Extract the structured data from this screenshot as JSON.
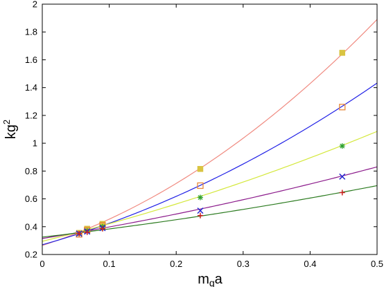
{
  "chart_data": {
    "type": "scatter",
    "xlabel": "m",
    "xlabel_sub": "q",
    "xlabel_tail": "a",
    "ylabel": "kg",
    "ylabel_sup": "2",
    "xlim": [
      0,
      0.5
    ],
    "ylim": [
      0.2,
      2
    ],
    "xticks": [
      "0",
      "0.1",
      "0.2",
      "0.3",
      "0.4",
      "0.5"
    ],
    "xtick_values": [
      0,
      0.1,
      0.2,
      0.3,
      0.4,
      0.5
    ],
    "yticks": [
      "0.2",
      "0.4",
      "0.6",
      "0.8",
      "1",
      "1.2",
      "1.4",
      "1.6",
      "1.8",
      "2"
    ],
    "ytick_values": [
      0.2,
      0.4,
      0.6,
      0.8,
      1.0,
      1.2,
      1.4,
      1.6,
      1.8,
      2.0
    ],
    "grid": false,
    "series": [
      {
        "marker": "filled-square",
        "marker_color": "#d9c441",
        "line_color": "#f08a80",
        "points": [
          [
            0.055,
            0.355
          ],
          [
            0.067,
            0.385
          ],
          [
            0.09,
            0.42
          ],
          [
            0.236,
            0.815
          ],
          [
            0.448,
            1.65
          ]
        ],
        "fit": [
          0.265,
          1.55,
          3.4
        ]
      },
      {
        "marker": "open-square",
        "marker_color": "#e8893a",
        "line_color": "#1f1fe6",
        "points": [
          [
            0.055,
            0.345
          ],
          [
            0.067,
            0.375
          ],
          [
            0.09,
            0.41
          ],
          [
            0.236,
            0.695
          ],
          [
            0.448,
            1.26
          ]
        ],
        "fit": [
          0.27,
          1.35,
          1.95
        ]
      },
      {
        "marker": "asterisk",
        "marker_color": "#2ea02e",
        "line_color": "#d4e83a",
        "points": [
          [
            0.055,
            0.35
          ],
          [
            0.067,
            0.37
          ],
          [
            0.09,
            0.4
          ],
          [
            0.236,
            0.61
          ],
          [
            0.448,
            0.98
          ]
        ],
        "fit": [
          0.295,
          1.18,
          0.8
        ]
      },
      {
        "marker": "x",
        "marker_color": "#2424d0",
        "line_color": "#8b1a8b",
        "points": [
          [
            0.055,
            0.35
          ],
          [
            0.067,
            0.365
          ],
          [
            0.09,
            0.39
          ],
          [
            0.236,
            0.515
          ],
          [
            0.448,
            0.76
          ]
        ],
        "fit": [
          0.315,
          0.78,
          0.5
        ]
      },
      {
        "marker": "plus",
        "marker_color": "#d02020",
        "line_color": "#2a7a1e",
        "points": [
          [
            0.055,
            0.35
          ],
          [
            0.067,
            0.36
          ],
          [
            0.09,
            0.385
          ],
          [
            0.236,
            0.48
          ],
          [
            0.448,
            0.645
          ]
        ],
        "fit": [
          0.325,
          0.55,
          0.38
        ]
      }
    ]
  }
}
